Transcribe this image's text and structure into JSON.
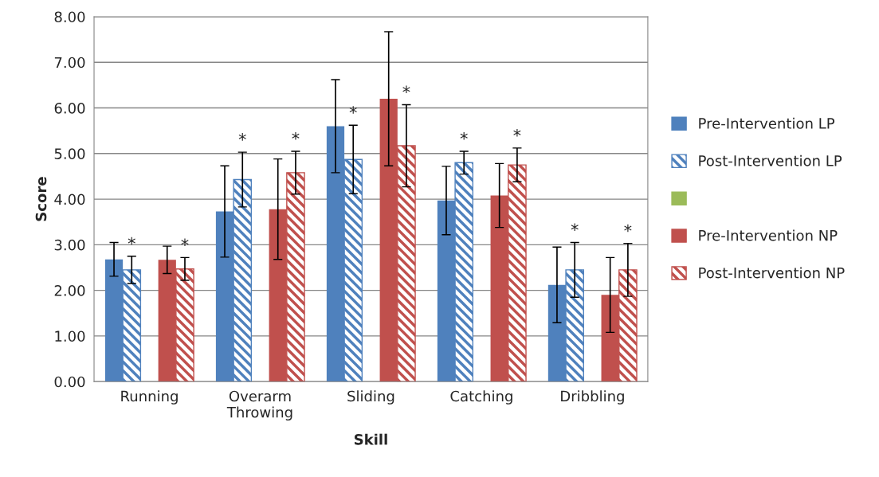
{
  "chart_data": {
    "type": "bar",
    "xlabel": "Skill",
    "ylabel": "Score",
    "categories": [
      "Running",
      "Overarm\nThrowing",
      "Sliding",
      "Catching",
      "Dribbling"
    ],
    "series": [
      {
        "name": "Pre-Intervention LP",
        "color": "#4f81bd",
        "values": [
          2.68,
          3.73,
          5.6,
          3.97,
          2.12
        ],
        "errors": [
          0.37,
          1.0,
          1.02,
          0.75,
          0.83
        ]
      },
      {
        "name": "Post-Intervention LP",
        "color": "#4f81bd",
        "values": [
          2.45,
          4.43,
          4.87,
          4.8,
          2.45
        ],
        "errors": [
          0.3,
          0.6,
          0.75,
          0.25,
          0.6
        ],
        "value_labels": [
          "*",
          "*",
          "*",
          "*",
          "*"
        ]
      },
      {
        "color": "#9bbb59",
        "values": [
          null,
          null,
          null,
          null,
          null
        ]
      },
      {
        "name": "Pre-Intervention NP",
        "color": "#c0504d",
        "values": [
          2.67,
          3.78,
          6.2,
          4.08,
          1.9
        ],
        "errors": [
          0.3,
          1.1,
          1.47,
          0.7,
          0.82
        ]
      },
      {
        "name": "Post-Intervention NP",
        "color": "#c0504d",
        "values": [
          2.47,
          4.58,
          5.17,
          4.75,
          2.45
        ],
        "errors": [
          0.25,
          0.47,
          0.9,
          0.37,
          0.58
        ],
        "value_labels": [
          "*",
          "*",
          "*",
          "*",
          "*"
        ]
      }
    ],
    "ylim": [
      0,
      8
    ],
    "yticks": [
      {
        "value": 0,
        "label": "0.00"
      },
      {
        "value": 1,
        "label": "1.00"
      },
      {
        "value": 2,
        "label": "2.00"
      },
      {
        "value": 3,
        "label": "3.00"
      },
      {
        "value": 4,
        "label": "4.00"
      },
      {
        "value": 5,
        "label": "5.00"
      },
      {
        "value": 6,
        "label": "6.00"
      },
      {
        "value": 7,
        "label": "7.00"
      },
      {
        "value": 8,
        "label": "8.00"
      }
    ],
    "grid": "y",
    "legend": "right"
  }
}
